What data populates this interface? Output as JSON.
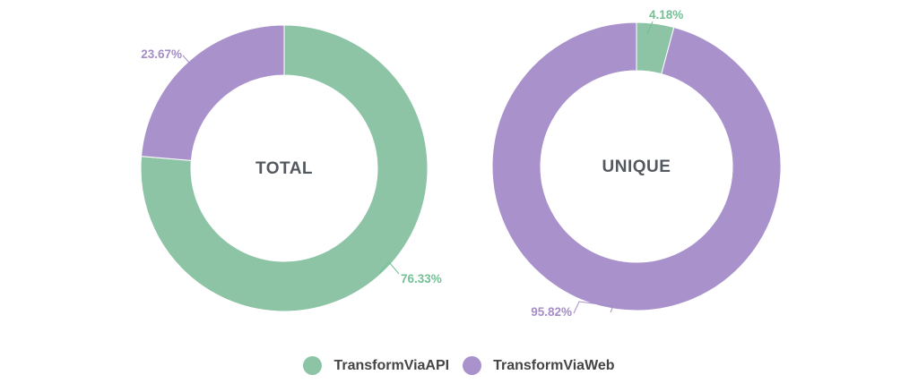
{
  "page": {
    "background": "#ffffff"
  },
  "legend": {
    "items": [
      {
        "label": "TransformViaAPI",
        "color": "#8dc4a6"
      },
      {
        "label": "TransformViaWeb",
        "color": "#a992cb"
      }
    ]
  },
  "chart_data": [
    {
      "type": "pie",
      "subtype": "donut",
      "title": "TOTAL",
      "series": [
        {
          "name": "TransformViaAPI",
          "value": 76.33,
          "label": "76.33%",
          "color": "#8dc4a6",
          "label_color": "#74c096"
        },
        {
          "name": "TransformViaWeb",
          "value": 23.67,
          "label": "23.67%",
          "color": "#a992cb",
          "label_color": "#a58dc7"
        }
      ],
      "legend_position": "bottom-center",
      "start_angle_deg_clockwise_from_top": 0
    },
    {
      "type": "pie",
      "subtype": "donut",
      "title": "UNIQUE",
      "series": [
        {
          "name": "TransformViaAPI",
          "value": 4.18,
          "label": "4.18%",
          "color": "#8dc4a6",
          "label_color": "#74c096"
        },
        {
          "name": "TransformViaWeb",
          "value": 95.82,
          "label": "95.82%",
          "color": "#a992cb",
          "label_color": "#a58dc7"
        }
      ],
      "legend_position": "bottom-center",
      "start_angle_deg_clockwise_from_top": 0
    }
  ]
}
